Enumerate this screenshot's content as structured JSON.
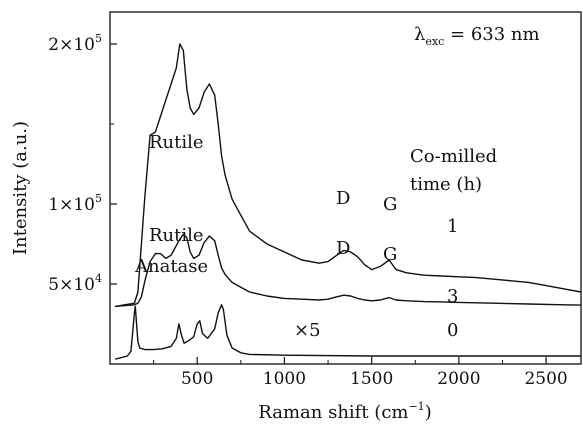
{
  "chart_data": {
    "type": "line",
    "xlabel": "Raman shift (cm",
    "xlabel_sup": "−1",
    "xlabel_end": ")",
    "ylabel": "Intensity (a.u.)",
    "xlim": [
      0,
      2700
    ],
    "ylim": [
      0,
      220000
    ],
    "x_ticks": [
      {
        "value": 500,
        "label": "500"
      },
      {
        "value": 1000,
        "label": "1000"
      },
      {
        "value": 1500,
        "label": "1500"
      },
      {
        "value": 2000,
        "label": "2000"
      },
      {
        "value": 2500,
        "label": "2500"
      }
    ],
    "y_ticks": [
      {
        "value": 50000,
        "mantissa": "5×10",
        "exp": "4"
      },
      {
        "value": 100000,
        "mantissa": "1×10",
        "exp": "5"
      },
      {
        "value": 200000,
        "mantissa": "2×10",
        "exp": "5"
      }
    ],
    "annotations": {
      "lambda_symbol": "λ",
      "lambda_sub": "exc",
      "lambda_rest": " = 633 nm",
      "rutile_top": "Rutile",
      "rutile_mid": "Rutile",
      "anatase": "Anatase",
      "legend_title_1": "Co-milled",
      "legend_title_2": "time (h)",
      "d_top": "D",
      "g_top": "G",
      "d_mid": "D",
      "g_mid": "G",
      "label_1": "1",
      "label_3": "3",
      "label_0": "0",
      "times5": "×5"
    },
    "series": [
      {
        "name": "1",
        "x": [
          30,
          140,
          160,
          180,
          200,
          230,
          260,
          290,
          320,
          350,
          380,
          400,
          420,
          440,
          460,
          480,
          510,
          540,
          570,
          600,
          620,
          640,
          660,
          700,
          750,
          800,
          900,
          1000,
          1100,
          1200,
          1250,
          1300,
          1340,
          1380,
          1420,
          1460,
          1500,
          1550,
          1600,
          1640,
          1700,
          1800,
          1900,
          2000,
          2100,
          2200,
          2300,
          2400,
          2500,
          2600,
          2700
        ],
        "y": [
          36000,
          38000,
          45000,
          75000,
          105000,
          143000,
          145000,
          155000,
          165000,
          175000,
          185000,
          200000,
          196000,
          172000,
          160000,
          156000,
          160000,
          170000,
          175000,
          168000,
          150000,
          130000,
          118000,
          103000,
          93000,
          83000,
          75000,
          70000,
          65000,
          63000,
          64000,
          68000,
          71000,
          70000,
          67000,
          62000,
          59000,
          61000,
          65000,
          59000,
          57000,
          55500,
          55000,
          54500,
          54000,
          53000,
          52000,
          51000,
          49000,
          47000,
          45000
        ]
      },
      {
        "name": "3",
        "x": [
          30,
          140,
          160,
          180,
          200,
          230,
          260,
          290,
          320,
          350,
          380,
          400,
          420,
          440,
          460,
          480,
          510,
          540,
          570,
          600,
          620,
          640,
          660,
          700,
          750,
          800,
          900,
          1000,
          1100,
          1200,
          1250,
          1300,
          1340,
          1380,
          1420,
          1460,
          1500,
          1550,
          1600,
          1640,
          1700,
          1800,
          1900,
          2000,
          2200,
          2400,
          2600,
          2700
        ],
        "y": [
          36000,
          37000,
          38000,
          42000,
          52000,
          64000,
          69000,
          69000,
          66000,
          68000,
          74000,
          78000,
          81000,
          79000,
          70000,
          66000,
          68000,
          76000,
          80000,
          77000,
          68000,
          60000,
          56000,
          51000,
          48000,
          45000,
          42500,
          41000,
          40500,
          40000,
          40500,
          42000,
          43000,
          42500,
          41000,
          40000,
          39500,
          40000,
          41500,
          40000,
          39500,
          39000,
          38800,
          38500,
          38000,
          37500,
          37000,
          36800
        ]
      },
      {
        "name": "0",
        "x": [
          30,
          100,
          120,
          130,
          140,
          145,
          150,
          160,
          170,
          200,
          250,
          300,
          350,
          380,
          395,
          410,
          425,
          450,
          480,
          500,
          515,
          530,
          560,
          600,
          620,
          640,
          650,
          670,
          700,
          750,
          800,
          1000,
          1500,
          2000,
          2500,
          2700
        ],
        "y": [
          3000,
          5000,
          8000,
          20000,
          32000,
          36000,
          28000,
          14000,
          10000,
          9000,
          9000,
          9500,
          11000,
          16000,
          25000,
          18000,
          13000,
          14500,
          17000,
          25000,
          27000,
          19000,
          16000,
          22000,
          32000,
          37000,
          34000,
          18000,
          10000,
          7000,
          6000,
          5500,
          5000,
          5000,
          5000,
          5000
        ]
      }
    ]
  }
}
